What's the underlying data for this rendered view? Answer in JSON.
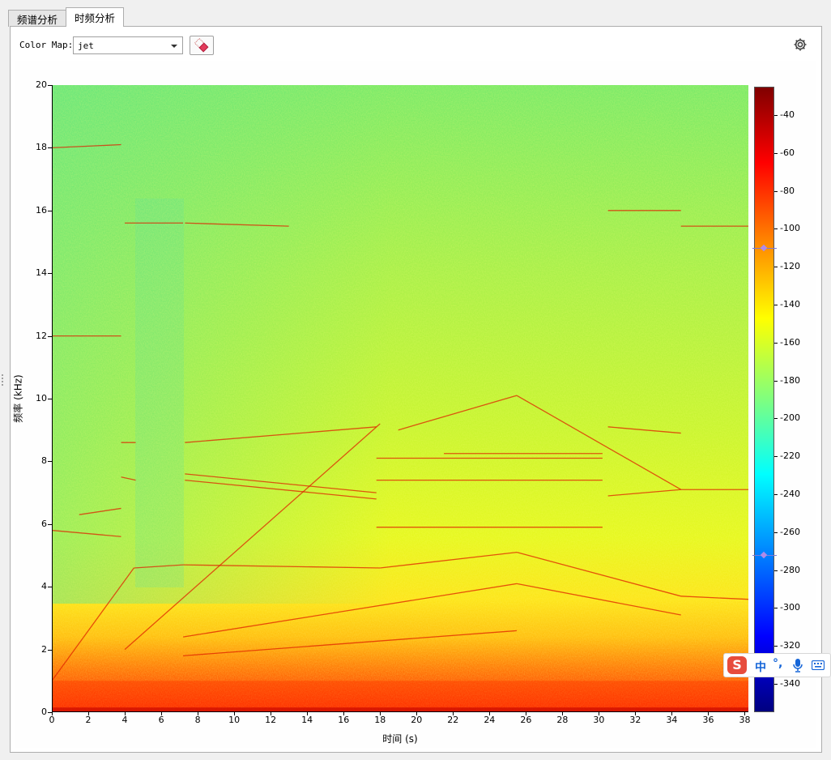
{
  "tabs": [
    {
      "label": "频谱分析",
      "active": false
    },
    {
      "label": "时频分析",
      "active": true
    }
  ],
  "toolbar": {
    "colormap_label": "Color Map:",
    "colormap_value": "jet"
  },
  "icons": {
    "eraser": "eraser-icon",
    "settings": "gear-icon",
    "ime_logo": "sogou-logo-icon",
    "ime_mic": "microphone-icon",
    "ime_keyboard": "keyboard-icon"
  },
  "ime": {
    "logo": "S",
    "mode": "中",
    "punctuation": "°,"
  },
  "chart_data": {
    "type": "heatmap",
    "title": "",
    "xlabel": "时间 (s)",
    "ylabel": "频率 (kHz)",
    "xlim": [
      0,
      38.2
    ],
    "ylim": [
      0,
      20
    ],
    "x_ticks": [
      "0",
      "2",
      "4",
      "6",
      "8",
      "10",
      "12",
      "14",
      "16",
      "18",
      "20",
      "22",
      "24",
      "26",
      "28",
      "30",
      "32",
      "34",
      "36",
      "38"
    ],
    "y_ticks": [
      "0",
      "2",
      "4",
      "6",
      "8",
      "10",
      "12",
      "14",
      "16",
      "18",
      "20"
    ],
    "colormap": "jet",
    "colorbar": {
      "range": [
        -355,
        -25
      ],
      "ticks": [
        "-40",
        "-60",
        "-80",
        "-100",
        "-120",
        "-140",
        "-160",
        "-180",
        "-200",
        "-220",
        "-240",
        "-260",
        "-280",
        "-300",
        "-320",
        "-340"
      ],
      "handles": [
        -110,
        -272
      ]
    },
    "background_level": -175,
    "low_freq_band": {
      "max_khz": 2.0,
      "level": -80
    },
    "tonal_lines_khz": [
      {
        "t": [
          0,
          3.8
        ],
        "f": [
          12.0,
          12.0
        ]
      },
      {
        "t": [
          0,
          3.8
        ],
        "f": [
          18.0,
          18.1
        ]
      },
      {
        "t": [
          4.0,
          7.2
        ],
        "f": [
          15.6,
          15.6
        ]
      },
      {
        "t": [
          7.3,
          13.0
        ],
        "f": [
          15.6,
          15.5
        ]
      },
      {
        "t": [
          30.5,
          34.5
        ],
        "f": [
          16.0,
          16.0
        ]
      },
      {
        "t": [
          34.5,
          38.2
        ],
        "f": [
          15.5,
          15.5
        ]
      },
      {
        "t": [
          0,
          3.8
        ],
        "f": [
          5.8,
          5.6
        ]
      },
      {
        "t": [
          1.5,
          3.8
        ],
        "f": [
          6.3,
          6.5
        ]
      },
      {
        "t": [
          3.8,
          4.6
        ],
        "f": [
          7.5,
          7.4
        ]
      },
      {
        "t": [
          3.8,
          4.6
        ],
        "f": [
          8.6,
          8.6
        ]
      },
      {
        "t": [
          7.3,
          17.8
        ],
        "f": [
          8.6,
          9.1
        ]
      },
      {
        "t": [
          7.3,
          17.8
        ],
        "f": [
          7.4,
          6.8
        ]
      },
      {
        "t": [
          7.3,
          17.8
        ],
        "f": [
          7.6,
          7.0
        ]
      },
      {
        "t": [
          17.8,
          30.2
        ],
        "f": [
          8.1,
          8.1
        ]
      },
      {
        "t": [
          17.8,
          30.2
        ],
        "f": [
          7.4,
          7.4
        ]
      },
      {
        "t": [
          17.8,
          30.2
        ],
        "f": [
          5.9,
          5.9
        ]
      },
      {
        "t": [
          21.5,
          30.2
        ],
        "f": [
          8.25,
          8.25
        ]
      },
      {
        "t": [
          30.5,
          34.5
        ],
        "f": [
          9.1,
          8.9
        ]
      },
      {
        "t": [
          30.5,
          34.5
        ],
        "f": [
          6.9,
          7.1
        ]
      },
      {
        "t": [
          34.5,
          38.2
        ],
        "f": [
          7.1,
          7.1
        ]
      },
      {
        "t": [
          19.0,
          25.5
        ],
        "f": [
          9.0,
          10.1
        ]
      },
      {
        "t": [
          25.5,
          34.5
        ],
        "f": [
          10.1,
          7.1
        ]
      },
      {
        "t": [
          4.0,
          18.0
        ],
        "f": [
          2.0,
          9.2
        ]
      },
      {
        "t": [
          0,
          4.5
        ],
        "f": [
          1.0,
          4.6
        ]
      },
      {
        "t": [
          4.5,
          7.2
        ],
        "f": [
          4.6,
          4.7
        ]
      },
      {
        "t": [
          7.2,
          18.0
        ],
        "f": [
          4.7,
          4.6
        ]
      },
      {
        "t": [
          18.0,
          25.5
        ],
        "f": [
          4.6,
          5.1
        ]
      },
      {
        "t": [
          25.5,
          34.5
        ],
        "f": [
          5.1,
          3.7
        ]
      },
      {
        "t": [
          34.5,
          38.2
        ],
        "f": [
          3.7,
          3.6
        ]
      },
      {
        "t": [
          7.2,
          25.5
        ],
        "f": [
          2.4,
          4.1
        ]
      },
      {
        "t": [
          25.5,
          34.5
        ],
        "f": [
          4.1,
          3.1
        ]
      },
      {
        "t": [
          7.2,
          25.5
        ],
        "f": [
          1.8,
          2.6
        ]
      }
    ]
  }
}
